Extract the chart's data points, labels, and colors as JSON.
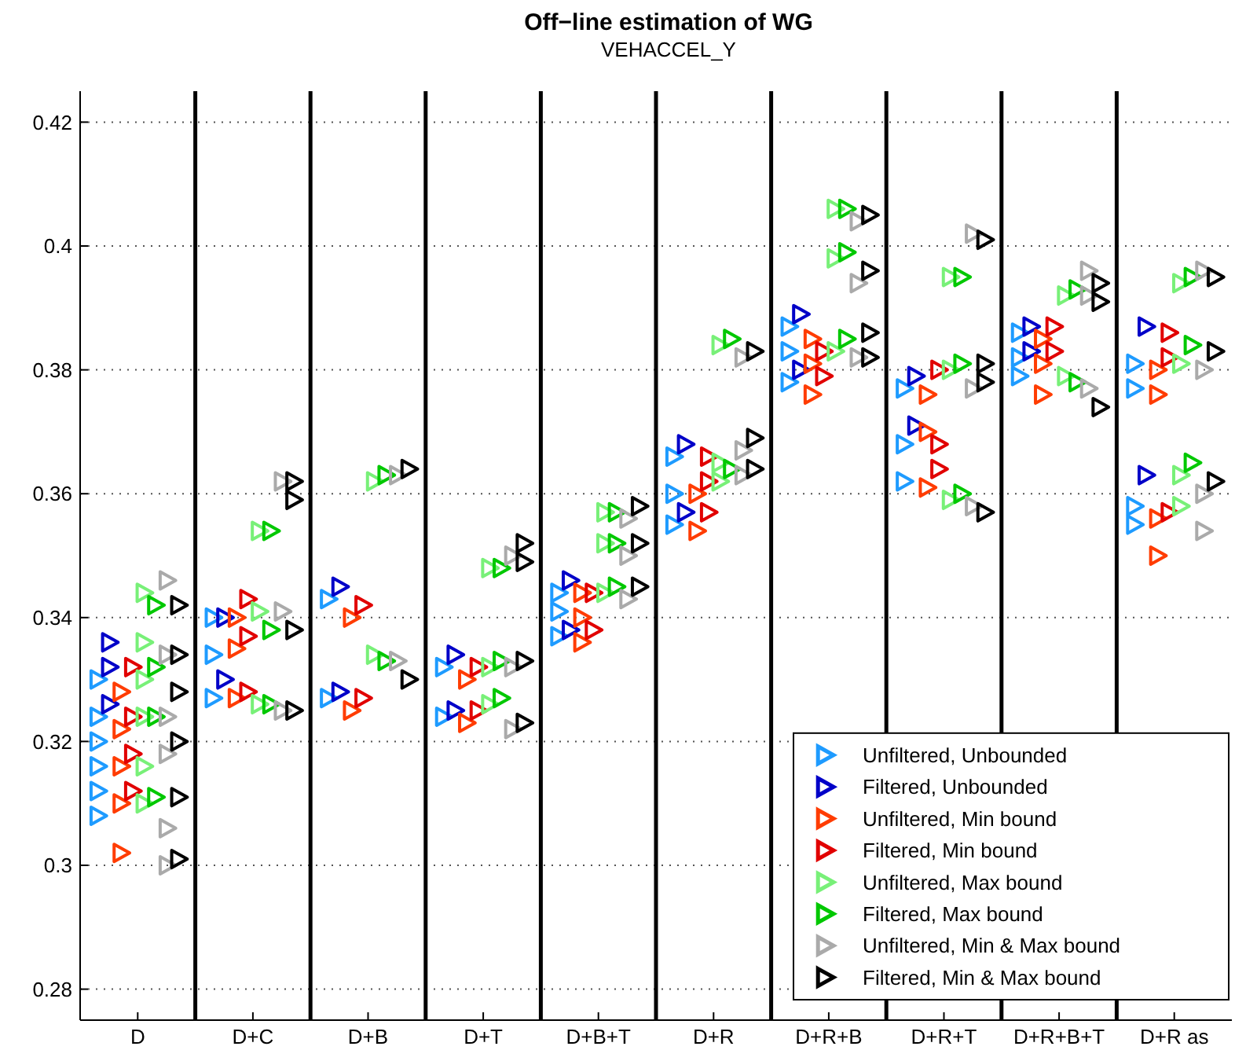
{
  "chart_data": {
    "type": "scatter",
    "title": "Off−line estimation of WG",
    "subtitle": "VEHACCEL_Y",
    "categories": [
      "D",
      "D+C",
      "D+B",
      "D+T",
      "D+B+T",
      "D+R",
      "D+R+B",
      "D+R+T",
      "D+R+B+T",
      "D+R as"
    ],
    "ylim": [
      0.275,
      0.425
    ],
    "yticks": [
      0.28,
      0.3,
      0.32,
      0.34,
      0.36,
      0.38,
      0.4,
      0.42
    ],
    "grid": "y",
    "legend": "bottom right",
    "marker": "triangle",
    "series": [
      {
        "name": "Unfiltered, Unbounded",
        "color": "#1e9bff",
        "x": [
          "D",
          "D",
          "D",
          "D",
          "D",
          "D",
          "D+C",
          "D+C",
          "D+C",
          "D+B",
          "D+B",
          "D+T",
          "D+T",
          "D+B+T",
          "D+B+T",
          "D+B+T",
          "D+R",
          "D+R",
          "D+R",
          "D+R+B",
          "D+R+B",
          "D+R+B",
          "D+R+T",
          "D+R+T",
          "D+R+T",
          "D+R+B+T",
          "D+R+B+T",
          "D+R+B+T",
          "D+R as",
          "D+R as",
          "D+R as",
          "D+R as"
        ],
        "values": [
          0.308,
          0.312,
          0.316,
          0.32,
          0.324,
          0.33,
          0.327,
          0.334,
          0.34,
          0.327,
          0.343,
          0.324,
          0.332,
          0.337,
          0.341,
          0.344,
          0.355,
          0.36,
          0.366,
          0.378,
          0.383,
          0.387,
          0.362,
          0.368,
          0.377,
          0.379,
          0.382,
          0.386,
          0.355,
          0.358,
          0.377,
          0.381
        ]
      },
      {
        "name": "Filtered, Unbounded",
        "color": "#0000c8",
        "x": [
          "D",
          "D",
          "D",
          "D+C",
          "D+C",
          "D+B",
          "D+B",
          "D+T",
          "D+T",
          "D+B+T",
          "D+B+T",
          "D+R",
          "D+R",
          "D+R+B",
          "D+R+B",
          "D+R+T",
          "D+R+T",
          "D+R+B+T",
          "D+R+B+T",
          "D+R as",
          "D+R as"
        ],
        "values": [
          0.326,
          0.332,
          0.336,
          0.33,
          0.34,
          0.328,
          0.345,
          0.325,
          0.334,
          0.338,
          0.346,
          0.357,
          0.368,
          0.38,
          0.389,
          0.371,
          0.379,
          0.383,
          0.387,
          0.363,
          0.387
        ]
      },
      {
        "name": "Unfiltered, Min bound",
        "color": "#ff3c00",
        "x": [
          "D",
          "D",
          "D",
          "D",
          "D",
          "D+C",
          "D+C",
          "D+C",
          "D+B",
          "D+B",
          "D+T",
          "D+T",
          "D+B+T",
          "D+B+T",
          "D+B+T",
          "D+R",
          "D+R",
          "D+R+B",
          "D+R+B",
          "D+R+B",
          "D+R+T",
          "D+R+T",
          "D+R+T",
          "D+R+B+T",
          "D+R+B+T",
          "D+R+B+T",
          "D+R as",
          "D+R as",
          "D+R as",
          "D+R as"
        ],
        "values": [
          0.302,
          0.31,
          0.316,
          0.322,
          0.328,
          0.327,
          0.335,
          0.34,
          0.325,
          0.34,
          0.323,
          0.33,
          0.336,
          0.34,
          0.344,
          0.354,
          0.36,
          0.376,
          0.381,
          0.385,
          0.361,
          0.37,
          0.376,
          0.376,
          0.381,
          0.385,
          0.35,
          0.356,
          0.376,
          0.38
        ]
      },
      {
        "name": "Filtered, Min bound",
        "color": "#e10000",
        "x": [
          "D",
          "D",
          "D",
          "D",
          "D+C",
          "D+C",
          "D+C",
          "D+B",
          "D+B",
          "D+T",
          "D+T",
          "D+B+T",
          "D+B+T",
          "D+R",
          "D+R",
          "D+R",
          "D+R+B",
          "D+R+B",
          "D+R+T",
          "D+R+T",
          "D+R+T",
          "D+R+B+T",
          "D+R+B+T",
          "D+R as",
          "D+R as",
          "D+R as"
        ],
        "values": [
          0.312,
          0.318,
          0.324,
          0.332,
          0.328,
          0.337,
          0.343,
          0.327,
          0.342,
          0.325,
          0.332,
          0.338,
          0.344,
          0.357,
          0.362,
          0.366,
          0.379,
          0.383,
          0.364,
          0.368,
          0.38,
          0.383,
          0.387,
          0.357,
          0.382,
          0.386
        ]
      },
      {
        "name": "Unfiltered, Max bound",
        "color": "#78f078",
        "x": [
          "D",
          "D",
          "D",
          "D",
          "D",
          "D",
          "D+C",
          "D+C",
          "D+C",
          "D+B",
          "D+B",
          "D+T",
          "D+T",
          "D+T",
          "D+B+T",
          "D+B+T",
          "D+B+T",
          "D+R",
          "D+R",
          "D+R",
          "D+R+B",
          "D+R+B",
          "D+R+B",
          "D+R+T",
          "D+R+T",
          "D+R+T",
          "D+R+B+T",
          "D+R+B+T",
          "D+R as",
          "D+R as",
          "D+R as",
          "D+R as"
        ],
        "values": [
          0.31,
          0.316,
          0.324,
          0.33,
          0.336,
          0.344,
          0.326,
          0.341,
          0.354,
          0.334,
          0.362,
          0.326,
          0.332,
          0.348,
          0.344,
          0.352,
          0.357,
          0.362,
          0.365,
          0.384,
          0.383,
          0.398,
          0.406,
          0.359,
          0.38,
          0.395,
          0.379,
          0.392,
          0.358,
          0.363,
          0.381,
          0.394
        ]
      },
      {
        "name": "Filtered, Max bound",
        "color": "#00c800",
        "x": [
          "D",
          "D",
          "D",
          "D",
          "D+C",
          "D+C",
          "D+C",
          "D+B",
          "D+B",
          "D+T",
          "D+T",
          "D+T",
          "D+B+T",
          "D+B+T",
          "D+B+T",
          "D+R",
          "D+R",
          "D+R+B",
          "D+R+B",
          "D+R+B",
          "D+R+T",
          "D+R+T",
          "D+R+T",
          "D+R+B+T",
          "D+R+B+T",
          "D+R as",
          "D+R as",
          "D+R as"
        ],
        "values": [
          0.311,
          0.324,
          0.332,
          0.342,
          0.326,
          0.338,
          0.354,
          0.333,
          0.363,
          0.327,
          0.333,
          0.348,
          0.345,
          0.352,
          0.357,
          0.364,
          0.385,
          0.385,
          0.399,
          0.406,
          0.36,
          0.381,
          0.395,
          0.378,
          0.393,
          0.365,
          0.384,
          0.395
        ]
      },
      {
        "name": "Unfiltered, Min & Max bound",
        "color": "#aaaaaa",
        "x": [
          "D",
          "D",
          "D",
          "D",
          "D",
          "D",
          "D+C",
          "D+C",
          "D+C",
          "D+B",
          "D+B",
          "D+T",
          "D+T",
          "D+T",
          "D+B+T",
          "D+B+T",
          "D+B+T",
          "D+R",
          "D+R",
          "D+R",
          "D+R+B",
          "D+R+B",
          "D+R+B",
          "D+R+T",
          "D+R+T",
          "D+R+T",
          "D+R+B+T",
          "D+R+B+T",
          "D+R+B+T",
          "D+R as",
          "D+R as",
          "D+R as",
          "D+R as"
        ],
        "values": [
          0.3,
          0.306,
          0.318,
          0.324,
          0.334,
          0.346,
          0.325,
          0.341,
          0.362,
          0.333,
          0.363,
          0.322,
          0.332,
          0.35,
          0.343,
          0.35,
          0.356,
          0.363,
          0.367,
          0.382,
          0.382,
          0.394,
          0.404,
          0.358,
          0.377,
          0.402,
          0.377,
          0.392,
          0.396,
          0.354,
          0.36,
          0.38,
          0.396
        ]
      },
      {
        "name": "Filtered, Min & Max bound",
        "color": "#000000",
        "x": [
          "D",
          "D",
          "D",
          "D",
          "D",
          "D",
          "D+C",
          "D+C",
          "D+C",
          "D+C",
          "D+B",
          "D+B",
          "D+T",
          "D+T",
          "D+T",
          "D+T",
          "D+B+T",
          "D+B+T",
          "D+B+T",
          "D+R",
          "D+R",
          "D+R",
          "D+R+B",
          "D+R+B",
          "D+R+B",
          "D+R+B",
          "D+R+T",
          "D+R+T",
          "D+R+T",
          "D+R+T",
          "D+R+B+T",
          "D+R+B+T",
          "D+R+B+T",
          "D+R as",
          "D+R as",
          "D+R as"
        ],
        "values": [
          0.301,
          0.311,
          0.32,
          0.328,
          0.334,
          0.342,
          0.325,
          0.338,
          0.359,
          0.362,
          0.33,
          0.364,
          0.323,
          0.333,
          0.349,
          0.352,
          0.345,
          0.352,
          0.358,
          0.364,
          0.369,
          0.383,
          0.382,
          0.386,
          0.396,
          0.405,
          0.357,
          0.378,
          0.381,
          0.401,
          0.374,
          0.391,
          0.394,
          0.362,
          0.383,
          0.395
        ]
      }
    ]
  }
}
